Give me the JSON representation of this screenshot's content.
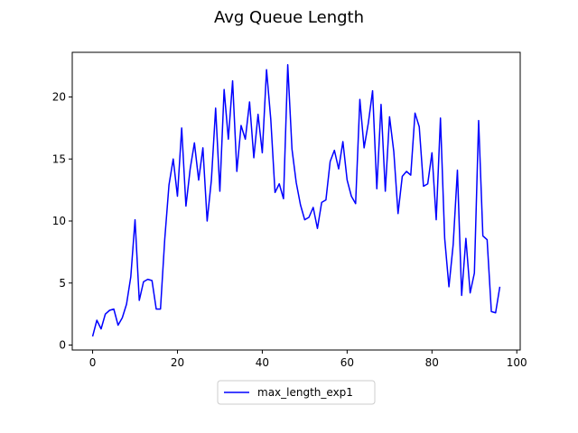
{
  "chart_data": {
    "type": "line",
    "title": "Avg Queue Length",
    "xlabel": "",
    "ylabel": "",
    "xlim": [
      -4.8,
      100.8
    ],
    "ylim": [
      -0.4,
      23.6
    ],
    "x_ticks": [
      0,
      20,
      40,
      60,
      80,
      100
    ],
    "y_ticks": [
      0,
      5,
      10,
      15,
      20
    ],
    "grid": false,
    "legend_position": "bottom-center",
    "series": [
      {
        "name": "max_length_exp1",
        "color": "#0000ff",
        "x": [
          0,
          1,
          2,
          3,
          4,
          5,
          6,
          7,
          8,
          9,
          10,
          11,
          12,
          13,
          14,
          15,
          16,
          17,
          18,
          19,
          20,
          21,
          22,
          23,
          24,
          25,
          26,
          27,
          28,
          29,
          30,
          31,
          32,
          33,
          34,
          35,
          36,
          37,
          38,
          39,
          40,
          41,
          42,
          43,
          44,
          45,
          46,
          47,
          48,
          49,
          50,
          51,
          52,
          53,
          54,
          55,
          56,
          57,
          58,
          59,
          60,
          61,
          62,
          63,
          64,
          65,
          66,
          67,
          68,
          69,
          70,
          71,
          72,
          73,
          74,
          75,
          76,
          77,
          78,
          79,
          80,
          81,
          82,
          83,
          84,
          85,
          86,
          87,
          88,
          89,
          90,
          91,
          92,
          93,
          94,
          95,
          96
        ],
        "y": [
          0.7,
          2.0,
          1.3,
          2.5,
          2.8,
          2.9,
          1.6,
          2.2,
          3.3,
          5.5,
          10.1,
          3.6,
          5.1,
          5.3,
          5.2,
          2.9,
          2.9,
          8.5,
          12.9,
          15.0,
          12.0,
          17.5,
          11.2,
          14.2,
          16.3,
          13.3,
          15.9,
          10.0,
          13.3,
          19.1,
          12.4,
          20.6,
          16.6,
          21.3,
          14.0,
          17.7,
          16.6,
          19.6,
          15.1,
          18.6,
          15.5,
          22.2,
          18.2,
          12.3,
          13.0,
          11.8,
          22.6,
          15.8,
          13.1,
          11.3,
          10.1,
          10.3,
          11.1,
          9.4,
          11.5,
          11.7,
          14.8,
          15.7,
          14.2,
          16.4,
          13.3,
          12.0,
          11.4,
          19.8,
          15.9,
          17.9,
          20.5,
          12.6,
          19.4,
          12.4,
          18.4,
          15.6,
          10.6,
          13.6,
          14.0,
          13.7,
          18.7,
          17.6,
          12.8,
          13.0,
          15.5,
          10.1,
          18.3,
          8.6,
          4.7,
          8.1,
          14.1,
          4.0,
          8.6,
          4.2,
          5.8,
          18.1,
          8.8,
          8.5,
          2.7,
          2.6,
          4.7
        ]
      }
    ]
  }
}
